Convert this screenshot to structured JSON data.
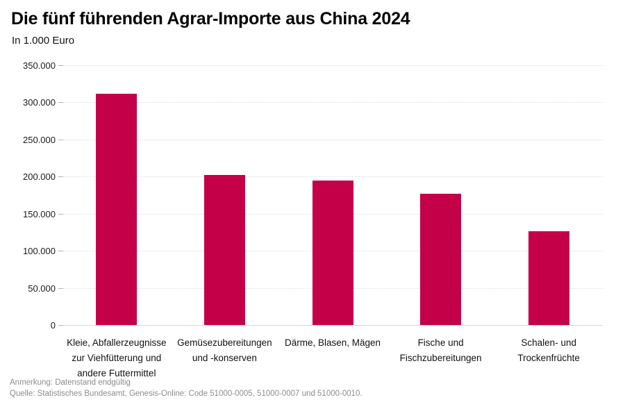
{
  "chart_data": {
    "type": "bar",
    "title": "Die fünf führenden Agrar-Importe aus China 2024",
    "subtitle": "In 1.000 Euro",
    "unit": "1.000 Euro",
    "categories": [
      "Kleie, Abfallerzeugnisse zur Viehfütterung und andere Futtermittel",
      "Gemüsezubereitungen und -konserven",
      "Därme, Blasen, Mägen",
      "Fische und Fischzubereitungen",
      "Schalen- und Trockenfrüchte"
    ],
    "category_lines": [
      [
        "Kleie, Abfallerzeugnisse",
        "zur Viehfütterung und",
        "andere Futtermittel"
      ],
      [
        "Gemüsezubereitungen",
        "und -konserven"
      ],
      [
        "Därme, Blasen, Mägen"
      ],
      [
        "Fische und",
        "Fischzubereitungen"
      ],
      [
        "Schalen- und",
        "Trockenfrüchte"
      ]
    ],
    "values": [
      312000,
      202000,
      195000,
      177000,
      126000
    ],
    "ylim": [
      0,
      350000
    ],
    "ytick_step": 50000,
    "ytick_labels": [
      "0",
      "50.000",
      "100.000",
      "150.000",
      "200.000",
      "250.000",
      "300.000",
      "350.000"
    ],
    "bar_color": "#c40049",
    "grid": "horizontal-dotted",
    "legend": "none"
  },
  "footer": {
    "note": "Anmerkung: Datenstand endgültig",
    "source": "Quelle: Statistisches Bundesamt, Genesis-Online: Code 51000-0005, 51000-0007 und 51000-0010."
  }
}
